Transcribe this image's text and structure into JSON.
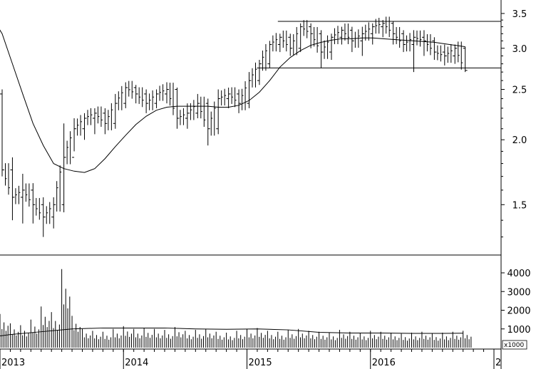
{
  "chart_data": [
    {
      "type": "ohlc",
      "scale": "log",
      "ylim": [
        1.2,
        3.6
      ],
      "yticks": [
        "3.5",
        "3.0",
        "2.5",
        "2.0",
        "1.5"
      ],
      "ytick_values": [
        3.5,
        3.0,
        2.5,
        2.0,
        1.5
      ],
      "x_range": [
        "2012-12",
        "2017-01"
      ],
      "price": [
        [
          "2012-12",
          2.55,
          2.48,
          2.65,
          2.45
        ],
        [
          "2013-01",
          2.45,
          1.75,
          2.5,
          1.7
        ],
        [
          "2013-02",
          1.75,
          1.55,
          1.85,
          1.4
        ],
        [
          "2013-03",
          1.55,
          1.6,
          1.72,
          1.38
        ],
        [
          "2013-04",
          1.6,
          1.5,
          1.65,
          1.38
        ],
        [
          "2013-05",
          1.5,
          1.42,
          1.55,
          1.3
        ],
        [
          "2013-06",
          1.42,
          1.5,
          1.55,
          1.35
        ],
        [
          "2013-07",
          1.5,
          1.85,
          2.15,
          1.45
        ],
        [
          "2013-08",
          1.85,
          2.1,
          2.2,
          1.9
        ],
        [
          "2013-09",
          2.1,
          2.2,
          2.25,
          2.0
        ],
        [
          "2013-10",
          2.2,
          2.25,
          2.3,
          2.05
        ],
        [
          "2013-11",
          2.25,
          2.15,
          2.3,
          2.05
        ],
        [
          "2013-12",
          2.15,
          2.35,
          2.45,
          2.1
        ],
        [
          "2014-01",
          2.35,
          2.52,
          2.58,
          2.3
        ],
        [
          "2014-02",
          2.52,
          2.45,
          2.55,
          2.35
        ],
        [
          "2014-03",
          2.45,
          2.35,
          2.5,
          2.25
        ],
        [
          "2014-04",
          2.35,
          2.45,
          2.5,
          2.3
        ],
        [
          "2014-05",
          2.45,
          2.5,
          2.58,
          2.35
        ],
        [
          "2014-06",
          2.5,
          2.2,
          2.52,
          2.1
        ],
        [
          "2014-07",
          2.2,
          2.25,
          2.35,
          2.1
        ],
        [
          "2014-08",
          2.25,
          2.35,
          2.45,
          2.2
        ],
        [
          "2014-09",
          2.35,
          2.1,
          2.4,
          1.95
        ],
        [
          "2014-10",
          2.1,
          2.4,
          2.5,
          2.05
        ],
        [
          "2014-11",
          2.4,
          2.45,
          2.52,
          2.3
        ],
        [
          "2014-12",
          2.45,
          2.35,
          2.5,
          2.25
        ],
        [
          "2015-01",
          2.35,
          2.6,
          2.7,
          2.3
        ],
        [
          "2015-02",
          2.6,
          2.8,
          2.85,
          2.55
        ],
        [
          "2015-03",
          2.8,
          3.05,
          3.1,
          2.75
        ],
        [
          "2015-04",
          3.05,
          3.15,
          3.2,
          2.95
        ],
        [
          "2015-05",
          3.15,
          3.0,
          3.2,
          2.9
        ],
        [
          "2015-06",
          3.0,
          3.3,
          3.35,
          2.95
        ],
        [
          "2015-07",
          3.3,
          3.2,
          3.35,
          3.0
        ],
        [
          "2015-08",
          3.2,
          2.95,
          3.25,
          2.75
        ],
        [
          "2015-09",
          2.95,
          3.15,
          3.2,
          2.85
        ],
        [
          "2015-10",
          3.15,
          3.25,
          3.3,
          3.05
        ],
        [
          "2015-11",
          3.25,
          3.1,
          3.3,
          2.95
        ],
        [
          "2015-12",
          3.1,
          3.2,
          3.3,
          2.9
        ],
        [
          "2016-01",
          3.2,
          3.3,
          3.35,
          3.05
        ],
        [
          "2016-02",
          3.3,
          3.35,
          3.4,
          3.15
        ],
        [
          "2016-03",
          3.35,
          3.2,
          3.38,
          3.05
        ],
        [
          "2016-04",
          3.2,
          3.05,
          3.25,
          2.95
        ],
        [
          "2016-05",
          3.05,
          3.15,
          3.25,
          2.7
        ],
        [
          "2016-06",
          3.15,
          3.1,
          3.25,
          2.9
        ],
        [
          "2016-07",
          3.1,
          2.95,
          3.15,
          2.85
        ],
        [
          "2016-08",
          2.95,
          2.9,
          3.05,
          2.78
        ],
        [
          "2016-09",
          2.9,
          3.0,
          3.05,
          2.8
        ],
        [
          "2016-10",
          3.0,
          2.72,
          3.02,
          2.7
        ]
      ],
      "moving_average": [
        [
          "2012-12",
          3.45
        ],
        [
          "2013-01",
          3.2
        ],
        [
          "2013-02",
          2.8
        ],
        [
          "2013-03",
          2.45
        ],
        [
          "2013-04",
          2.15
        ],
        [
          "2013-05",
          1.95
        ],
        [
          "2013-06",
          1.8
        ],
        [
          "2013-07",
          1.76
        ],
        [
          "2013-08",
          1.74
        ],
        [
          "2013-09",
          1.73
        ],
        [
          "2013-10",
          1.76
        ],
        [
          "2013-11",
          1.84
        ],
        [
          "2013-12",
          1.94
        ],
        [
          "2014-01",
          2.04
        ],
        [
          "2014-02",
          2.14
        ],
        [
          "2014-03",
          2.22
        ],
        [
          "2014-04",
          2.28
        ],
        [
          "2014-05",
          2.31
        ],
        [
          "2014-06",
          2.32
        ],
        [
          "2014-07",
          2.32
        ],
        [
          "2014-08",
          2.32
        ],
        [
          "2014-09",
          2.32
        ],
        [
          "2014-10",
          2.31
        ],
        [
          "2014-11",
          2.31
        ],
        [
          "2014-12",
          2.33
        ],
        [
          "2015-01",
          2.38
        ],
        [
          "2015-02",
          2.47
        ],
        [
          "2015-03",
          2.6
        ],
        [
          "2015-04",
          2.76
        ],
        [
          "2015-05",
          2.88
        ],
        [
          "2015-06",
          2.97
        ],
        [
          "2015-07",
          3.04
        ],
        [
          "2015-08",
          3.08
        ],
        [
          "2015-09",
          3.11
        ],
        [
          "2015-10",
          3.13
        ],
        [
          "2015-11",
          3.13
        ],
        [
          "2015-12",
          3.14
        ],
        [
          "2016-01",
          3.14
        ],
        [
          "2016-02",
          3.13
        ],
        [
          "2016-03",
          3.12
        ],
        [
          "2016-04",
          3.11
        ],
        [
          "2016-05",
          3.1
        ],
        [
          "2016-06",
          3.09
        ],
        [
          "2016-07",
          3.08
        ],
        [
          "2016-08",
          3.06
        ],
        [
          "2016-09",
          3.04
        ],
        [
          "2016-10",
          3.02
        ]
      ],
      "resistance_line": {
        "from": "2015-04",
        "to": "2017-01",
        "value": 3.38
      },
      "support_line": {
        "from": "2015-01",
        "to": "2017-01",
        "value": 2.75
      }
    },
    {
      "type": "bar",
      "ylim": [
        0,
        4800
      ],
      "yticks": [
        "4000",
        "3000",
        "2000",
        "1000"
      ],
      "ytick_values": [
        4000,
        3000,
        2000,
        1000
      ],
      "unit": "x1000",
      "volume": [
        [
          "2012-12",
          900
        ],
        [
          "2013-01",
          1800
        ],
        [
          "2013-02",
          1300
        ],
        [
          "2013-03",
          1200
        ],
        [
          "2013-04",
          1500
        ],
        [
          "2013-05",
          2200
        ],
        [
          "2013-06",
          1900
        ],
        [
          "2013-07",
          4200
        ],
        [
          "2013-08",
          1700
        ],
        [
          "2013-09",
          1000
        ],
        [
          "2013-10",
          900
        ],
        [
          "2013-11",
          850
        ],
        [
          "2013-12",
          1000
        ],
        [
          "2014-01",
          1150
        ],
        [
          "2014-02",
          1000
        ],
        [
          "2014-03",
          1050
        ],
        [
          "2014-04",
          1000
        ],
        [
          "2014-05",
          950
        ],
        [
          "2014-06",
          1100
        ],
        [
          "2014-07",
          900
        ],
        [
          "2014-08",
          950
        ],
        [
          "2014-09",
          1000
        ],
        [
          "2014-10",
          850
        ],
        [
          "2014-11",
          800
        ],
        [
          "2014-12",
          900
        ],
        [
          "2015-01",
          1000
        ],
        [
          "2015-02",
          1050
        ],
        [
          "2015-03",
          900
        ],
        [
          "2015-04",
          850
        ],
        [
          "2015-05",
          950
        ],
        [
          "2015-06",
          1000
        ],
        [
          "2015-07",
          900
        ],
        [
          "2015-08",
          850
        ],
        [
          "2015-09",
          800
        ],
        [
          "2015-10",
          950
        ],
        [
          "2015-11",
          850
        ],
        [
          "2015-12",
          800
        ],
        [
          "2016-01",
          900
        ],
        [
          "2016-02",
          850
        ],
        [
          "2016-03",
          800
        ],
        [
          "2016-04",
          750
        ],
        [
          "2016-05",
          800
        ],
        [
          "2016-06",
          850
        ],
        [
          "2016-07",
          750
        ],
        [
          "2016-08",
          800
        ],
        [
          "2016-09",
          850
        ],
        [
          "2016-10",
          900
        ]
      ],
      "volume_average": [
        [
          "2012-12",
          550
        ],
        [
          "2013-02",
          700
        ],
        [
          "2013-05",
          850
        ],
        [
          "2013-08",
          1000
        ],
        [
          "2013-11",
          1050
        ],
        [
          "2014-02",
          1050
        ],
        [
          "2014-05",
          1050
        ],
        [
          "2014-08",
          1000
        ],
        [
          "2014-11",
          980
        ],
        [
          "2015-02",
          1000
        ],
        [
          "2015-05",
          950
        ],
        [
          "2015-08",
          820
        ],
        [
          "2015-11",
          780
        ],
        [
          "2016-02",
          780
        ],
        [
          "2016-05",
          760
        ],
        [
          "2016-08",
          760
        ],
        [
          "2016-10",
          770
        ]
      ]
    }
  ],
  "x_axis": {
    "labels": [
      {
        "text": "2013",
        "date": "2013-01"
      },
      {
        "text": "2014",
        "date": "2014-01"
      },
      {
        "text": "2015",
        "date": "2015-01"
      },
      {
        "text": "2016",
        "date": "2016-01"
      },
      {
        "text": "2",
        "date": "2017-01"
      }
    ]
  }
}
